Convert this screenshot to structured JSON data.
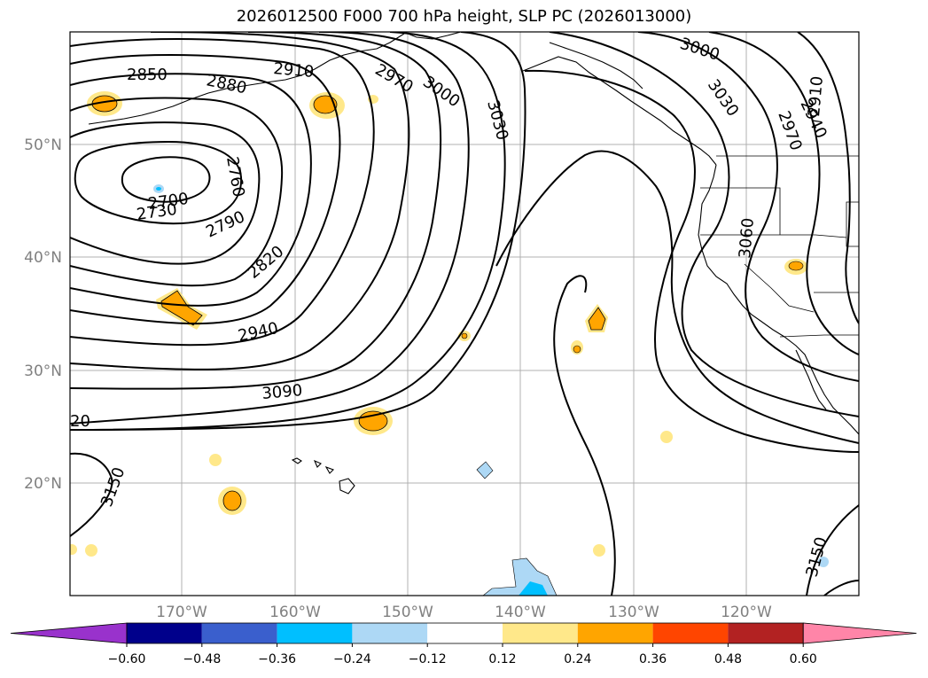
{
  "title": "2026012500 F000 700 hPa height, SLP PC (2026013000)",
  "lat_labels": [
    "50°N",
    "40°N",
    "30°N",
    "20°N"
  ],
  "lon_labels": [
    "170°W",
    "160°W",
    "150°W",
    "140°W",
    "130°W",
    "120°W"
  ],
  "contour_labels": [
    "2850",
    "2880",
    "2910",
    "2970",
    "3000",
    "3030",
    "3000",
    "3030",
    "2970",
    "2940",
    "2910",
    "2760",
    "2700",
    "2730",
    "2790",
    "2820",
    "2940",
    "3060",
    "3090",
    "20",
    "3150",
    "3150"
  ],
  "colorbar": {
    "colors": [
      "#9932cc",
      "#00008b",
      "#3a5fcd",
      "#00bfff",
      "#add8f5",
      "#ffffff",
      "#ffe88a",
      "#ffa500",
      "#ff4500",
      "#b22222",
      "#ff85a8"
    ],
    "ticks": [
      "−0.60",
      "−0.48",
      "−0.36",
      "−0.24",
      "−0.12",
      "0.12",
      "0.24",
      "0.36",
      "0.48",
      "0.60"
    ]
  }
}
